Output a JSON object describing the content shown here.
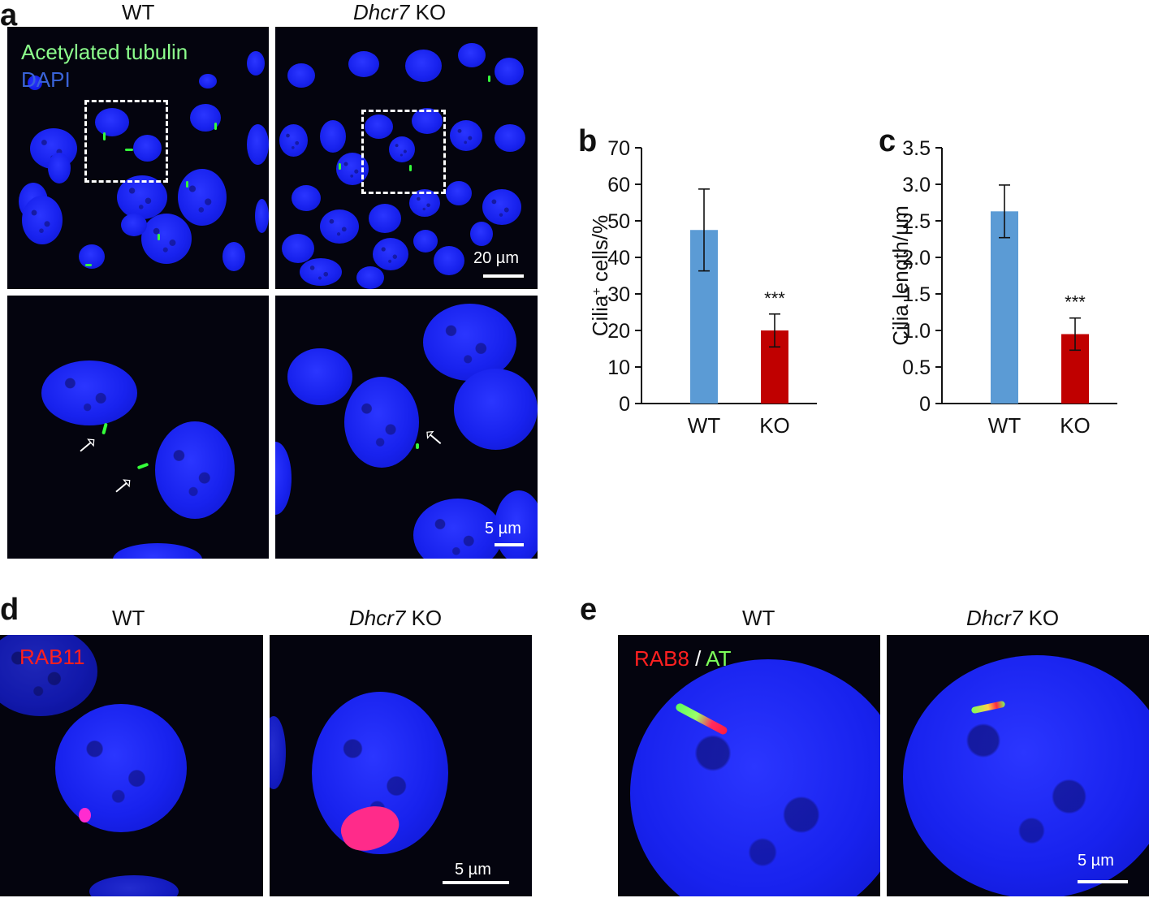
{
  "panel_a": {
    "letter": "a",
    "col_wt": "WT",
    "col_ko_gene": "Dhcr7",
    "col_ko_suffix": " KO",
    "legend_at": "Acetylated tubulin",
    "legend_dapi": "DAPI",
    "scale_top": "20 µm",
    "scale_bottom": "5 µm",
    "colors": {
      "acetylated_tubulin": "#8cff8c",
      "dapi": "#3a63d8"
    }
  },
  "panel_d": {
    "letter": "d",
    "col_wt": "WT",
    "col_ko_gene": "Dhcr7",
    "col_ko_suffix": " KO",
    "label": "RAB11",
    "scale": "5 µm",
    "colors": {
      "rab11": "#ff2020"
    }
  },
  "panel_e": {
    "letter": "e",
    "col_wt": "WT",
    "col_ko_gene": "Dhcr7",
    "col_ko_suffix": " KO",
    "label_rab8": "RAB8",
    "label_sep": " / ",
    "label_at": "AT",
    "scale": "5 µm",
    "colors": {
      "rab8": "#ff2020",
      "at": "#7dff5a"
    }
  },
  "chart_data": [
    {
      "letter": "b",
      "type": "bar",
      "categories": [
        "WT",
        "KO"
      ],
      "values": [
        47.5,
        20.0
      ],
      "errors": [
        11.2,
        4.5
      ],
      "colors": [
        "#5b9bd5",
        "#c00000"
      ],
      "ylabel_main": "Cilia",
      "ylabel_sup": "+",
      "ylabel_rest": " cells/%",
      "ylim": [
        0,
        70
      ],
      "yticks": [
        "0",
        "10",
        "20",
        "30",
        "40",
        "50",
        "60",
        "70"
      ],
      "annotation": "***"
    },
    {
      "letter": "c",
      "type": "bar",
      "categories": [
        "WT",
        "KO"
      ],
      "values": [
        2.63,
        0.95
      ],
      "errors": [
        0.36,
        0.22
      ],
      "colors": [
        "#5b9bd5",
        "#c00000"
      ],
      "ylabel_main": "Cilia length/µm",
      "ylim": [
        0,
        3.5
      ],
      "yticks": [
        "0",
        "0.5",
        "1.0",
        "1.5",
        "2.0",
        "2.5",
        "3.0",
        "3.5"
      ],
      "annotation": "***"
    }
  ]
}
